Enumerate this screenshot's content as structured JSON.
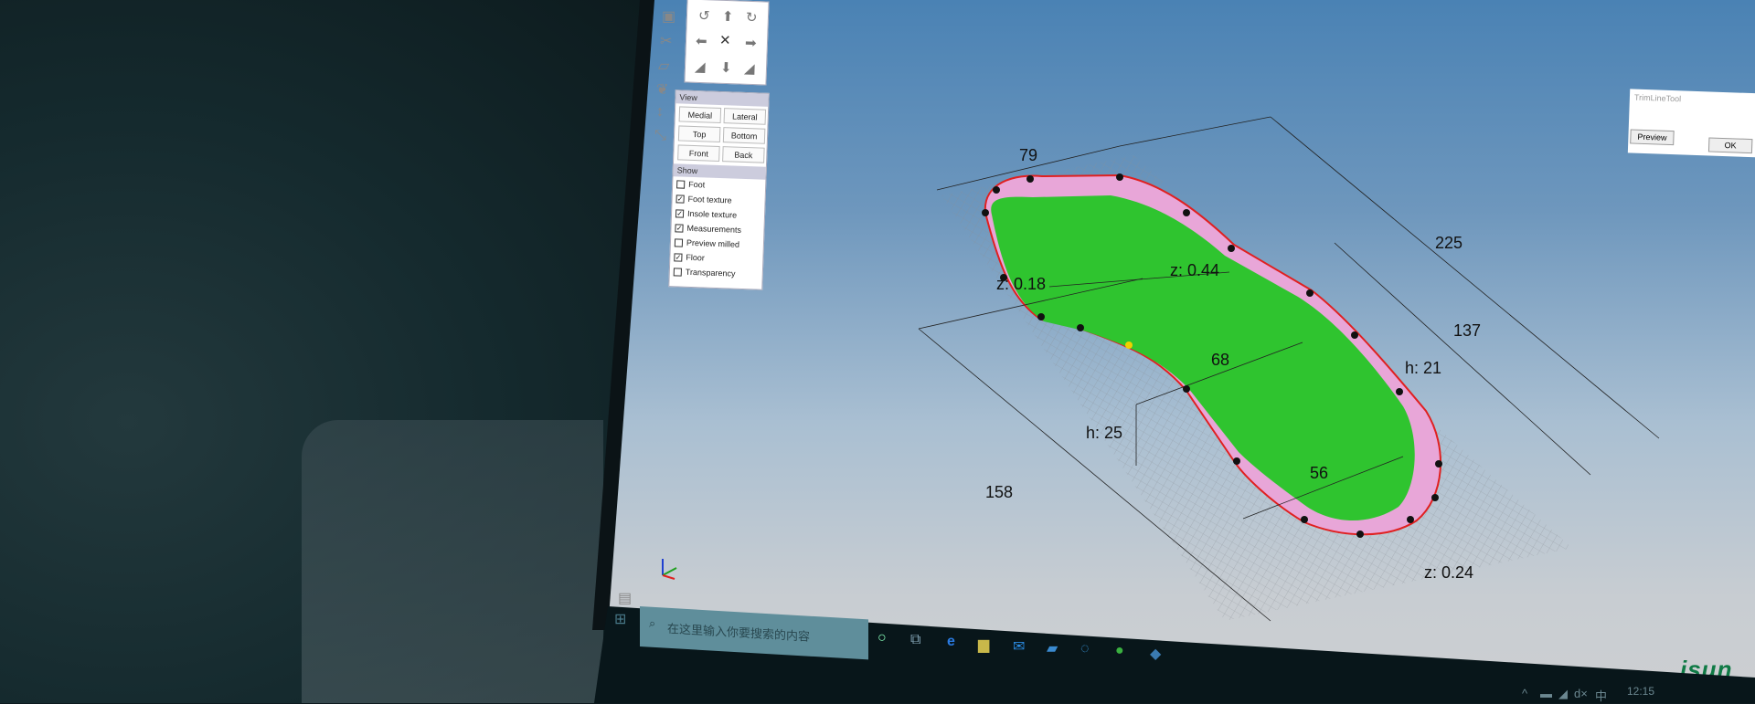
{
  "toolbar": {
    "icons": [
      "select-icon",
      "scissors-icon",
      "plane-icon",
      "footprints-icon",
      "vertical-arrow-icon",
      "fit-icon",
      "save-icon"
    ]
  },
  "navigation": {
    "icons": [
      "rotate-left-icon",
      "arrow-up-icon",
      "rotate-right-icon",
      "arrow-left-icon",
      "tools-icon",
      "arrow-right-icon",
      "tilt-left-icon",
      "arrow-down-icon",
      "tilt-right-icon"
    ]
  },
  "view": {
    "title": "View",
    "buttons": [
      "Medial",
      "Lateral",
      "Top",
      "Bottom",
      "Front",
      "Back"
    ]
  },
  "show": {
    "title": "Show",
    "items": [
      {
        "label": "Foot",
        "checked": false
      },
      {
        "label": "Foot texture",
        "checked": true
      },
      {
        "label": "Insole texture",
        "checked": true
      },
      {
        "label": "Measurements",
        "checked": true
      },
      {
        "label": "Preview milled",
        "checked": false
      },
      {
        "label": "Floor",
        "checked": true
      },
      {
        "label": "Transparency",
        "checked": false
      }
    ]
  },
  "measurements": [
    "79",
    "225",
    "137",
    "h: 21",
    "z: 0.44",
    "z: 0.18",
    "68",
    "h: 25",
    "56",
    "158",
    "z: 0.24"
  ],
  "dialog": {
    "title": "TrimLineTool",
    "preview": "Preview",
    "ok": "OK"
  },
  "taskbar": {
    "search_placeholder": "在这里输入你要搜索的内容",
    "time": "12:15",
    "tray": [
      "^",
      "▬",
      "◢",
      "d×",
      "中"
    ]
  },
  "logo": "isun",
  "colors": {
    "foot": "#2fc42f",
    "insole": "#e8a6d8",
    "trimline": "#e02020",
    "sky": "#4a82b4"
  }
}
